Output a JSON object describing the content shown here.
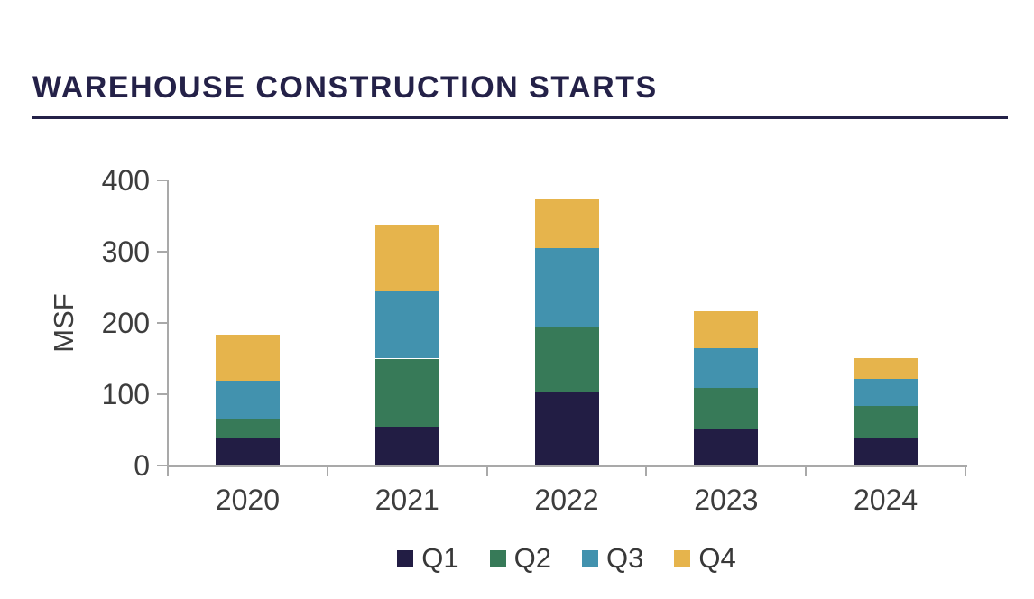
{
  "header": {
    "title": "WAREHOUSE CONSTRUCTION STARTS",
    "title_color": "#242148",
    "rule_color": "#242148"
  },
  "chart_data": {
    "type": "bar",
    "stacked": true,
    "title": "WAREHOUSE CONSTRUCTION STARTS",
    "categories": [
      "2020",
      "2021",
      "2022",
      "2023",
      "2024"
    ],
    "series": [
      {
        "name": "Q1",
        "color": "#221d44",
        "values": [
          38,
          55,
          103,
          52,
          38
        ]
      },
      {
        "name": "Q2",
        "color": "#377a58",
        "values": [
          26,
          95,
          92,
          57,
          45
        ]
      },
      {
        "name": "Q3",
        "color": "#4292ae",
        "values": [
          55,
          94,
          110,
          55,
          38
        ]
      },
      {
        "name": "Q4",
        "color": "#e6b44c",
        "values": [
          64,
          94,
          68,
          52,
          30
        ]
      }
    ],
    "totals": [
      183,
      338,
      373,
      216,
      151
    ],
    "xlabel": "",
    "ylabel": "MSF",
    "ylim": [
      0,
      400
    ],
    "yticks": [
      0,
      100,
      200,
      300,
      400
    ],
    "grid": false,
    "legend_position": "bottom",
    "axis_color": "#a9a9a9",
    "label_color": "#3d3d3d"
  }
}
